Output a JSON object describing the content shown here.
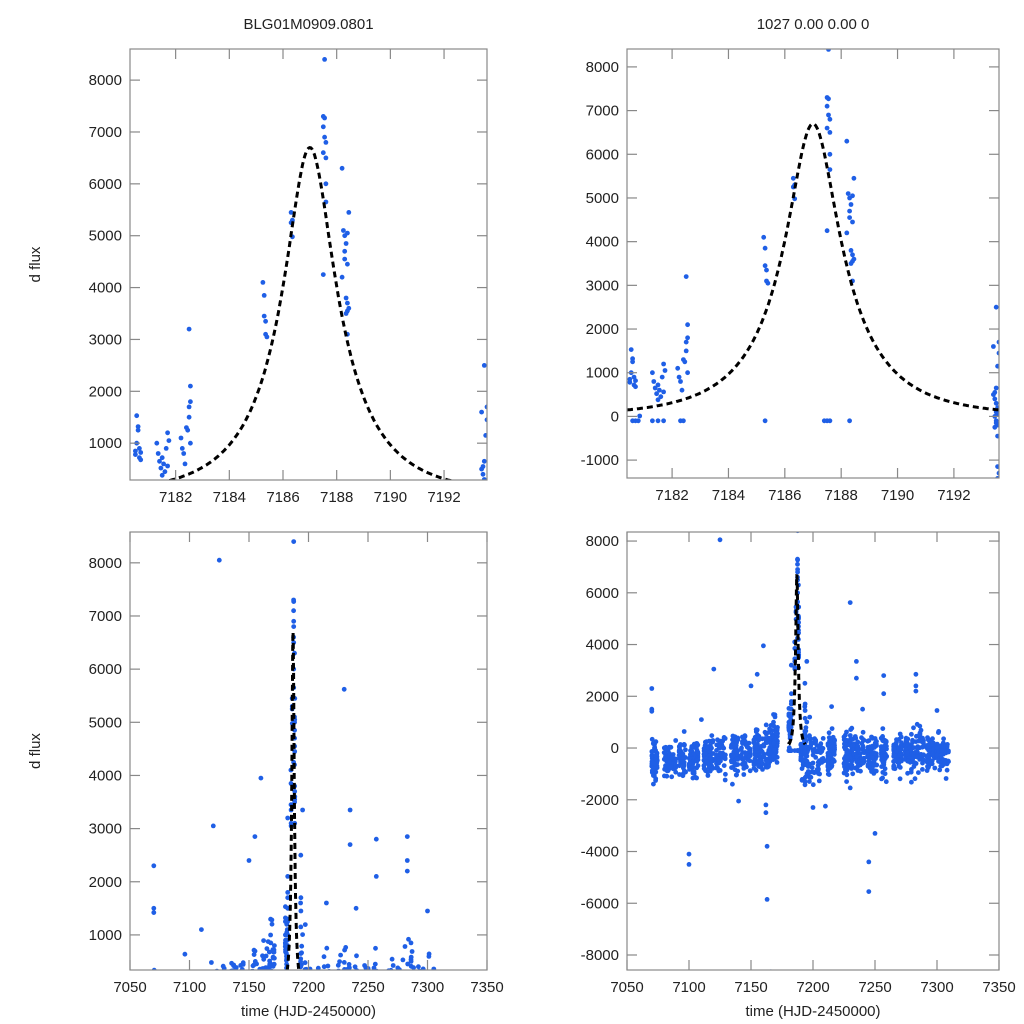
{
  "colors": {
    "points": "#1f5fe6",
    "model": "#000000",
    "frame": "#888888"
  },
  "chart_data": [
    {
      "id": "top-left",
      "type": "scatter",
      "title": "BLG01M0909.0801",
      "xlabel": "",
      "ylabel": "d flux",
      "xlim": [
        7180.3,
        7193.6
      ],
      "ylim": [
        290,
        8600
      ],
      "xticks": [
        7182,
        7184,
        7186,
        7188,
        7190,
        7192
      ],
      "yticks": [
        1000,
        2000,
        3000,
        4000,
        5000,
        6000,
        7000,
        8000
      ],
      "model": {
        "type": "paczynski",
        "t0": 7187.0,
        "peak": 6700,
        "u0": 0.3,
        "tE": 3.2,
        "baseline_offset": 0,
        "style": "dashed"
      },
      "series_name": "observations"
    },
    {
      "id": "top-right",
      "type": "scatter",
      "title": "1027  0.00  0.00  0",
      "xlabel": "",
      "ylabel": "",
      "xlim": [
        7180.4,
        7193.6
      ],
      "ylim": [
        -1410,
        8410
      ],
      "xticks": [
        7182,
        7184,
        7186,
        7188,
        7190,
        7192
      ],
      "yticks": [
        -1000,
        0,
        1000,
        2000,
        3000,
        4000,
        5000,
        6000,
        7000,
        8000
      ],
      "model": {
        "type": "paczynski",
        "t0": 7187.0,
        "peak": 6700,
        "u0": 0.3,
        "tE": 3.2,
        "baseline_offset": 0,
        "style": "dashed"
      },
      "series_name": "observations"
    },
    {
      "id": "bottom-left",
      "type": "scatter",
      "title": "",
      "xlabel": "time (HJD-2450000)",
      "ylabel": "d flux",
      "xlim": [
        7050,
        7350
      ],
      "ylim": [
        340,
        8580
      ],
      "xticks": [
        7050,
        7100,
        7150,
        7200,
        7250,
        7300,
        7350
      ],
      "yticks": [
        1000,
        2000,
        3000,
        4000,
        5000,
        6000,
        7000,
        8000
      ],
      "model": {
        "type": "paczynski",
        "t0": 7187.0,
        "peak": 6700,
        "u0": 0.3,
        "tE": 3.2,
        "baseline_offset": 0,
        "style": "dashed",
        "range": [
          7180.4,
          7193.6
        ]
      },
      "series_name": "observations"
    },
    {
      "id": "bottom-right",
      "type": "scatter",
      "title": "",
      "xlabel": "time (HJD-2450000)",
      "ylabel": "",
      "xlim": [
        7050,
        7350
      ],
      "ylim": [
        -8580,
        8350
      ],
      "xticks": [
        7050,
        7100,
        7150,
        7200,
        7250,
        7300,
        7350
      ],
      "yticks": [
        -8000,
        -6000,
        -4000,
        -2000,
        0,
        2000,
        4000,
        6000,
        8000
      ],
      "model": {
        "type": "paczynski",
        "t0": 7187.0,
        "peak": 6700,
        "u0": 0.3,
        "tE": 3.2,
        "baseline_offset": 0,
        "style": "dashed",
        "range": [
          7180.4,
          7193.6
        ]
      },
      "series_name": "observations"
    }
  ],
  "observations": {
    "event_points": [
      [
        7180.5,
        850
      ],
      [
        7180.5,
        780
      ],
      [
        7180.55,
        1000
      ],
      [
        7180.55,
        1530
      ],
      [
        7180.6,
        1320
      ],
      [
        7180.6,
        1250
      ],
      [
        7180.65,
        900
      ],
      [
        7180.65,
        720
      ],
      [
        7180.7,
        820
      ],
      [
        7180.7,
        680
      ],
      [
        7180.6,
        -100
      ],
      [
        7180.7,
        -100
      ],
      [
        7180.8,
        -100
      ],
      [
        7180.85,
        10
      ],
      [
        7181.3,
        1000
      ],
      [
        7181.35,
        800
      ],
      [
        7181.4,
        650
      ],
      [
        7181.45,
        520
      ],
      [
        7181.5,
        720
      ],
      [
        7181.55,
        600
      ],
      [
        7181.6,
        450
      ],
      [
        7181.65,
        900
      ],
      [
        7181.7,
        1200
      ],
      [
        7181.75,
        1050
      ],
      [
        7181.5,
        380
      ],
      [
        7181.7,
        560
      ],
      [
        7181.3,
        -100
      ],
      [
        7181.5,
        -100
      ],
      [
        7181.7,
        -100
      ],
      [
        7182.2,
        1100
      ],
      [
        7182.25,
        900
      ],
      [
        7182.3,
        800
      ],
      [
        7182.35,
        600
      ],
      [
        7182.4,
        1300
      ],
      [
        7182.45,
        1250
      ],
      [
        7182.5,
        1500
      ],
      [
        7182.5,
        1700
      ],
      [
        7182.55,
        1800
      ],
      [
        7182.55,
        2100
      ],
      [
        7182.5,
        3200
      ],
      [
        7182.55,
        1000
      ],
      [
        7182.3,
        -100
      ],
      [
        7182.4,
        -100
      ],
      [
        7185.25,
        4100
      ],
      [
        7185.3,
        3850
      ],
      [
        7185.3,
        3450
      ],
      [
        7185.35,
        3350
      ],
      [
        7185.35,
        3100
      ],
      [
        7185.4,
        3050
      ],
      [
        7185.3,
        -100
      ],
      [
        7186.3,
        5450
      ],
      [
        7186.35,
        5300
      ],
      [
        7186.3,
        5250
      ],
      [
        7186.35,
        4980
      ],
      [
        7187.5,
        7300
      ],
      [
        7187.55,
        7270
      ],
      [
        7187.5,
        7100
      ],
      [
        7187.55,
        6900
      ],
      [
        7187.6,
        6800
      ],
      [
        7187.5,
        6600
      ],
      [
        7187.6,
        6500
      ],
      [
        7187.55,
        8400
      ],
      [
        7187.5,
        4250
      ],
      [
        7187.6,
        5650
      ],
      [
        7187.6,
        6000
      ],
      [
        7187.4,
        -100
      ],
      [
        7187.5,
        -100
      ],
      [
        7187.6,
        -100
      ],
      [
        7188.2,
        6300
      ],
      [
        7188.25,
        5100
      ],
      [
        7188.3,
        5000
      ],
      [
        7188.35,
        4850
      ],
      [
        7188.3,
        4700
      ],
      [
        7188.4,
        5050
      ],
      [
        7188.45,
        5450
      ],
      [
        7188.4,
        4450
      ],
      [
        7188.3,
        4550
      ],
      [
        7188.35,
        3800
      ],
      [
        7188.4,
        3700
      ],
      [
        7188.45,
        3600
      ],
      [
        7188.4,
        3550
      ],
      [
        7188.35,
        3500
      ],
      [
        7188.4,
        3100
      ],
      [
        7188.2,
        4200
      ],
      [
        7188.3,
        -100
      ],
      [
        7193.4,
        500
      ],
      [
        7193.45,
        400
      ],
      [
        7193.5,
        300
      ],
      [
        7193.55,
        200
      ],
      [
        7193.5,
        100
      ],
      [
        7193.45,
        0
      ],
      [
        7193.5,
        -100
      ],
      [
        7193.55,
        -200
      ],
      [
        7193.45,
        -250
      ],
      [
        7193.5,
        -150
      ],
      [
        7193.55,
        50
      ],
      [
        7193.4,
        1600
      ],
      [
        7193.5,
        2500
      ],
      [
        7193.55,
        1150
      ],
      [
        7193.6,
        1700
      ],
      [
        7193.6,
        1450
      ],
      [
        7193.55,
        -450
      ],
      [
        7193.55,
        -1150
      ],
      [
        7193.6,
        -1300
      ],
      [
        7193.55,
        -1420
      ],
      [
        7193.45,
        550
      ],
      [
        7193.5,
        650
      ]
    ],
    "season_seed": 1027
  }
}
